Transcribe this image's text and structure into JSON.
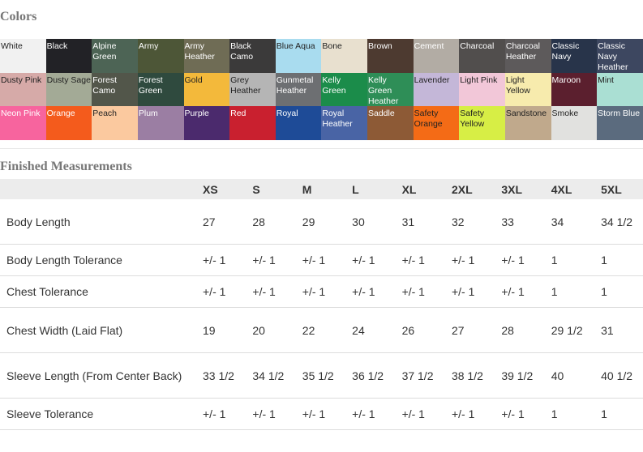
{
  "colors": {
    "title": "Colors",
    "swatches": [
      {
        "name": "White",
        "bg": "#f1f1f1",
        "fg": "#222"
      },
      {
        "name": "Black",
        "bg": "#222226",
        "fg": "#fff"
      },
      {
        "name": "Alpine Green",
        "bg": "#4d6455",
        "fg": "#fff"
      },
      {
        "name": "Army",
        "bg": "#4d5637",
        "fg": "#fff"
      },
      {
        "name": "Army Heather",
        "bg": "#6f6c55",
        "fg": "#fff"
      },
      {
        "name": "Black Camo",
        "bg": "#3b3a3a",
        "fg": "#fff"
      },
      {
        "name": "Blue Aqua",
        "bg": "#a9dcef",
        "fg": "#222"
      },
      {
        "name": "Bone",
        "bg": "#e8e0cf",
        "fg": "#222"
      },
      {
        "name": "Brown",
        "bg": "#4d3a30",
        "fg": "#fff"
      },
      {
        "name": "Cement",
        "bg": "#b2aca4",
        "fg": "#fff"
      },
      {
        "name": "Charcoal",
        "bg": "#514e4d",
        "fg": "#fff"
      },
      {
        "name": "Charcoal Heather",
        "bg": "#5d5a5b",
        "fg": "#fff"
      },
      {
        "name": "Classic Navy",
        "bg": "#28344a",
        "fg": "#fff"
      },
      {
        "name": "Classic Navy Heather",
        "bg": "#3d4760",
        "fg": "#fff"
      },
      {
        "name": "Dusty Pink",
        "bg": "#d6aaa8",
        "fg": "#222"
      },
      {
        "name": "Dusty Sage",
        "bg": "#a3aa96",
        "fg": "#222"
      },
      {
        "name": "Forest Camo",
        "bg": "#52564a",
        "fg": "#fff"
      },
      {
        "name": "Forest Green",
        "bg": "#2f4a3e",
        "fg": "#fff"
      },
      {
        "name": "Gold",
        "bg": "#f3b93b",
        "fg": "#222"
      },
      {
        "name": "Grey Heather",
        "bg": "#b5b5b5",
        "fg": "#222"
      },
      {
        "name": "Gunmetal Heather",
        "bg": "#6d6f72",
        "fg": "#fff"
      },
      {
        "name": "Kelly Green",
        "bg": "#1b8c4a",
        "fg": "#fff"
      },
      {
        "name": "Kelly Green Heather",
        "bg": "#2e8e57",
        "fg": "#fff"
      },
      {
        "name": "Lavender",
        "bg": "#c4b7d8",
        "fg": "#222"
      },
      {
        "name": "Light Pink",
        "bg": "#f2c7d8",
        "fg": "#222"
      },
      {
        "name": "Light Yellow",
        "bg": "#f7ebad",
        "fg": "#222"
      },
      {
        "name": "Maroon",
        "bg": "#5b1f2e",
        "fg": "#fff"
      },
      {
        "name": "Mint",
        "bg": "#aadfd3",
        "fg": "#222"
      },
      {
        "name": "Neon Pink",
        "bg": "#f7649e",
        "fg": "#fff"
      },
      {
        "name": "Orange",
        "bg": "#f45b1c",
        "fg": "#fff"
      },
      {
        "name": "Peach",
        "bg": "#fbc99f",
        "fg": "#222"
      },
      {
        "name": "Plum",
        "bg": "#9b7ea3",
        "fg": "#fff"
      },
      {
        "name": "Purple",
        "bg": "#4b2a6d",
        "fg": "#fff"
      },
      {
        "name": "Red",
        "bg": "#c9202f",
        "fg": "#fff"
      },
      {
        "name": "Royal",
        "bg": "#1e4b97",
        "fg": "#fff"
      },
      {
        "name": "Royal Heather",
        "bg": "#4964a5",
        "fg": "#fff"
      },
      {
        "name": "Saddle",
        "bg": "#8d5a36",
        "fg": "#fff"
      },
      {
        "name": "Safety Orange",
        "bg": "#f46b16",
        "fg": "#222"
      },
      {
        "name": "Safety Yellow",
        "bg": "#d7ee45",
        "fg": "#222"
      },
      {
        "name": "Sandstone",
        "bg": "#c0a98c",
        "fg": "#222"
      },
      {
        "name": "Smoke",
        "bg": "#e1e1df",
        "fg": "#222"
      },
      {
        "name": "Storm Blue",
        "bg": "#5b6b7e",
        "fg": "#fff"
      }
    ]
  },
  "measurements": {
    "title": "Finished Measurements",
    "sizes": [
      "XS",
      "S",
      "M",
      "L",
      "XL",
      "2XL",
      "3XL",
      "4XL",
      "5XL"
    ],
    "rows": [
      {
        "label": "Body Length",
        "values": [
          "27",
          "28",
          "29",
          "30",
          "31",
          "32",
          "33",
          "34",
          "34 1/2"
        ]
      },
      {
        "label": "Body Length Tolerance",
        "values": [
          "+/- 1",
          "+/- 1",
          "+/- 1",
          "+/- 1",
          "+/- 1",
          "+/- 1",
          "+/- 1",
          "1",
          "1"
        ]
      },
      {
        "label": "Chest Tolerance",
        "values": [
          "+/- 1",
          "+/- 1",
          "+/- 1",
          "+/- 1",
          "+/- 1",
          "+/- 1",
          "+/- 1",
          "1",
          "1"
        ]
      },
      {
        "label": "Chest Width (Laid Flat)",
        "values": [
          "19",
          "20",
          "22",
          "24",
          "26",
          "27",
          "28",
          "29 1/2",
          "31"
        ]
      },
      {
        "label": "Sleeve Length (From Center Back)",
        "values": [
          "33 1/2",
          "34 1/2",
          "35 1/2",
          "36 1/2",
          "37 1/2",
          "38 1/2",
          "39 1/2",
          "40",
          "40 1/2"
        ]
      },
      {
        "label": "Sleeve Tolerance",
        "values": [
          "+/- 1",
          "+/- 1",
          "+/- 1",
          "+/- 1",
          "+/- 1",
          "+/- 1",
          "+/- 1",
          "1",
          "1"
        ]
      }
    ]
  }
}
